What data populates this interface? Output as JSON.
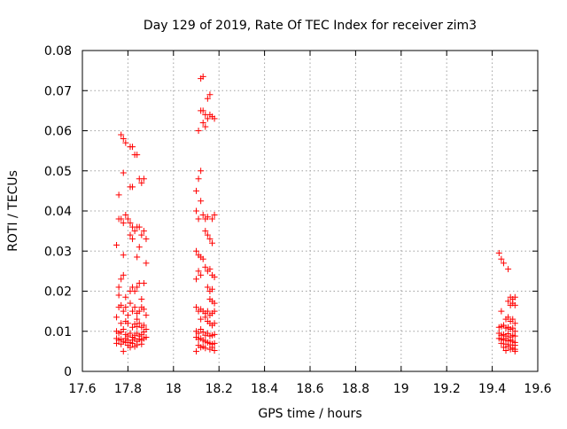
{
  "chart_data": {
    "type": "scatter",
    "title": "Day 129 of 2019, Rate Of TEC Index for receiver zim3",
    "xlabel": "GPS time / hours",
    "ylabel": "ROTI / TECUs",
    "xlim": [
      17.6,
      19.6
    ],
    "ylim": [
      0,
      0.08
    ],
    "x_ticks": [
      17.6,
      17.8,
      18.0,
      18.2,
      18.4,
      18.6,
      18.8,
      19.0,
      19.2,
      19.4,
      19.6
    ],
    "x_tick_labels": [
      "17.6",
      "17.8",
      "18",
      "18.2",
      "18.4",
      "18.6",
      "18.8",
      "19",
      "19.2",
      "19.4",
      "19.6"
    ],
    "y_ticks": [
      0,
      0.01,
      0.02,
      0.03,
      0.04,
      0.05,
      0.06,
      0.07,
      0.08
    ],
    "y_tick_labels": [
      "0",
      "0.01",
      "0.02",
      "0.03",
      "0.04",
      "0.05",
      "0.06",
      "0.07",
      "0.08"
    ],
    "grid": true,
    "marker": "+",
    "color": "#ff0000",
    "series": [
      {
        "name": "zim3",
        "points": [
          [
            17.77,
            0.059
          ],
          [
            17.78,
            0.058
          ],
          [
            17.79,
            0.057
          ],
          [
            17.81,
            0.056
          ],
          [
            17.82,
            0.056
          ],
          [
            17.83,
            0.054
          ],
          [
            17.84,
            0.054
          ],
          [
            17.78,
            0.0495
          ],
          [
            17.76,
            0.044
          ],
          [
            17.81,
            0.046
          ],
          [
            17.82,
            0.046
          ],
          [
            17.85,
            0.048
          ],
          [
            17.86,
            0.047
          ],
          [
            17.87,
            0.048
          ],
          [
            17.76,
            0.038
          ],
          [
            17.77,
            0.038
          ],
          [
            17.78,
            0.037
          ],
          [
            17.79,
            0.039
          ],
          [
            17.8,
            0.038
          ],
          [
            17.81,
            0.037
          ],
          [
            17.82,
            0.036
          ],
          [
            17.83,
            0.035
          ],
          [
            17.84,
            0.036
          ],
          [
            17.85,
            0.036
          ],
          [
            17.86,
            0.034
          ],
          [
            17.87,
            0.035
          ],
          [
            17.88,
            0.033
          ],
          [
            17.81,
            0.034
          ],
          [
            17.82,
            0.033
          ],
          [
            17.85,
            0.031
          ],
          [
            17.75,
            0.0315
          ],
          [
            17.78,
            0.029
          ],
          [
            17.84,
            0.0285
          ],
          [
            17.88,
            0.027
          ],
          [
            17.77,
            0.023
          ],
          [
            17.78,
            0.024
          ],
          [
            17.76,
            0.021
          ],
          [
            17.81,
            0.02
          ],
          [
            17.82,
            0.021
          ],
          [
            17.83,
            0.02
          ],
          [
            17.84,
            0.021
          ],
          [
            17.85,
            0.022
          ],
          [
            17.87,
            0.022
          ],
          [
            17.86,
            0.018
          ],
          [
            17.76,
            0.019
          ],
          [
            17.79,
            0.0185
          ],
          [
            17.76,
            0.016
          ],
          [
            17.77,
            0.0165
          ],
          [
            17.78,
            0.015
          ],
          [
            17.79,
            0.016
          ],
          [
            17.8,
            0.014
          ],
          [
            17.81,
            0.017
          ],
          [
            17.82,
            0.015
          ],
          [
            17.83,
            0.016
          ],
          [
            17.84,
            0.0145
          ],
          [
            17.85,
            0.015
          ],
          [
            17.86,
            0.016
          ],
          [
            17.87,
            0.0155
          ],
          [
            17.88,
            0.014
          ],
          [
            17.84,
            0.013
          ],
          [
            17.75,
            0.0135
          ],
          [
            17.77,
            0.012
          ],
          [
            17.79,
            0.0125
          ],
          [
            17.8,
            0.012
          ],
          [
            17.82,
            0.011
          ],
          [
            17.83,
            0.0118
          ],
          [
            17.84,
            0.0112
          ],
          [
            17.85,
            0.012
          ],
          [
            17.86,
            0.011
          ],
          [
            17.87,
            0.0115
          ],
          [
            17.88,
            0.0105
          ],
          [
            17.75,
            0.01
          ],
          [
            17.76,
            0.0095
          ],
          [
            17.77,
            0.0098
          ],
          [
            17.78,
            0.0105
          ],
          [
            17.79,
            0.0092
          ],
          [
            17.8,
            0.0088
          ],
          [
            17.81,
            0.0095
          ],
          [
            17.82,
            0.0085
          ],
          [
            17.83,
            0.009
          ],
          [
            17.84,
            0.0095
          ],
          [
            17.85,
            0.0088
          ],
          [
            17.86,
            0.0092
          ],
          [
            17.87,
            0.0098
          ],
          [
            17.88,
            0.0085
          ],
          [
            17.75,
            0.0082
          ],
          [
            17.76,
            0.0078
          ],
          [
            17.77,
            0.008
          ],
          [
            17.78,
            0.0075
          ],
          [
            17.79,
            0.0082
          ],
          [
            17.8,
            0.0078
          ],
          [
            17.81,
            0.0072
          ],
          [
            17.82,
            0.0078
          ],
          [
            17.83,
            0.0082
          ],
          [
            17.84,
            0.0075
          ],
          [
            17.85,
            0.008
          ],
          [
            17.86,
            0.0078
          ],
          [
            17.87,
            0.0082
          ],
          [
            17.75,
            0.007
          ],
          [
            17.77,
            0.0068
          ],
          [
            17.79,
            0.0072
          ],
          [
            17.8,
            0.0065
          ],
          [
            17.82,
            0.007
          ],
          [
            17.84,
            0.0066
          ],
          [
            17.86,
            0.0068
          ],
          [
            17.78,
            0.005
          ],
          [
            17.81,
            0.006
          ],
          [
            17.83,
            0.0062
          ],
          [
            18.12,
            0.073
          ],
          [
            18.13,
            0.0735
          ],
          [
            18.15,
            0.068
          ],
          [
            18.16,
            0.069
          ],
          [
            18.12,
            0.065
          ],
          [
            18.13,
            0.065
          ],
          [
            18.14,
            0.064
          ],
          [
            18.15,
            0.063
          ],
          [
            18.16,
            0.064
          ],
          [
            18.17,
            0.0635
          ],
          [
            18.18,
            0.063
          ],
          [
            18.13,
            0.062
          ],
          [
            18.14,
            0.061
          ],
          [
            18.11,
            0.06
          ],
          [
            18.12,
            0.05
          ],
          [
            18.11,
            0.048
          ],
          [
            18.1,
            0.045
          ],
          [
            18.12,
            0.0425
          ],
          [
            18.1,
            0.04
          ],
          [
            18.11,
            0.038
          ],
          [
            18.13,
            0.039
          ],
          [
            18.14,
            0.038
          ],
          [
            18.15,
            0.0385
          ],
          [
            18.17,
            0.038
          ],
          [
            18.18,
            0.039
          ],
          [
            18.14,
            0.035
          ],
          [
            18.15,
            0.034
          ],
          [
            18.16,
            0.033
          ],
          [
            18.17,
            0.032
          ],
          [
            18.1,
            0.03
          ],
          [
            18.11,
            0.029
          ],
          [
            18.12,
            0.0285
          ],
          [
            18.13,
            0.028
          ],
          [
            18.14,
            0.026
          ],
          [
            18.15,
            0.025
          ],
          [
            18.16,
            0.0255
          ],
          [
            18.11,
            0.025
          ],
          [
            18.12,
            0.024
          ],
          [
            18.1,
            0.023
          ],
          [
            18.17,
            0.024
          ],
          [
            18.18,
            0.0235
          ],
          [
            18.15,
            0.021
          ],
          [
            18.16,
            0.02
          ],
          [
            18.17,
            0.0205
          ],
          [
            18.16,
            0.018
          ],
          [
            18.17,
            0.0175
          ],
          [
            18.18,
            0.017
          ],
          [
            18.1,
            0.016
          ],
          [
            18.11,
            0.015
          ],
          [
            18.12,
            0.0155
          ],
          [
            18.13,
            0.015
          ],
          [
            18.14,
            0.0145
          ],
          [
            18.15,
            0.015
          ],
          [
            18.16,
            0.014
          ],
          [
            18.17,
            0.0145
          ],
          [
            18.18,
            0.015
          ],
          [
            18.12,
            0.013
          ],
          [
            18.14,
            0.0135
          ],
          [
            18.15,
            0.0125
          ],
          [
            18.16,
            0.012
          ],
          [
            18.17,
            0.0115
          ],
          [
            18.18,
            0.012
          ],
          [
            18.1,
            0.01
          ],
          [
            18.11,
            0.0095
          ],
          [
            18.12,
            0.0105
          ],
          [
            18.13,
            0.0098
          ],
          [
            18.14,
            0.009
          ],
          [
            18.15,
            0.0095
          ],
          [
            18.16,
            0.0088
          ],
          [
            18.17,
            0.009
          ],
          [
            18.18,
            0.0092
          ],
          [
            18.1,
            0.0085
          ],
          [
            18.11,
            0.008
          ],
          [
            18.12,
            0.0082
          ],
          [
            18.13,
            0.0078
          ],
          [
            18.14,
            0.0075
          ],
          [
            18.15,
            0.0072
          ],
          [
            18.16,
            0.007
          ],
          [
            18.17,
            0.0068
          ],
          [
            18.18,
            0.007
          ],
          [
            18.12,
            0.006
          ],
          [
            18.14,
            0.0058
          ],
          [
            18.16,
            0.0055
          ],
          [
            18.17,
            0.006
          ],
          [
            18.18,
            0.0052
          ],
          [
            18.11,
            0.0065
          ],
          [
            18.13,
            0.0062
          ],
          [
            18.1,
            0.005
          ],
          [
            19.43,
            0.0295
          ],
          [
            19.44,
            0.028
          ],
          [
            19.45,
            0.027
          ],
          [
            19.47,
            0.0255
          ],
          [
            19.48,
            0.0185
          ],
          [
            19.49,
            0.018
          ],
          [
            19.5,
            0.0185
          ],
          [
            19.47,
            0.0175
          ],
          [
            19.5,
            0.0165
          ],
          [
            19.48,
            0.0165
          ],
          [
            19.49,
            0.017
          ],
          [
            19.44,
            0.015
          ],
          [
            19.46,
            0.013
          ],
          [
            19.47,
            0.0135
          ],
          [
            19.48,
            0.0125
          ],
          [
            19.49,
            0.013
          ],
          [
            19.5,
            0.012
          ],
          [
            19.45,
            0.0115
          ],
          [
            19.43,
            0.011
          ],
          [
            19.44,
            0.0112
          ],
          [
            19.46,
            0.0108
          ],
          [
            19.47,
            0.011
          ],
          [
            19.48,
            0.0105
          ],
          [
            19.49,
            0.0108
          ],
          [
            19.5,
            0.01
          ],
          [
            19.43,
            0.0095
          ],
          [
            19.44,
            0.009
          ],
          [
            19.45,
            0.0092
          ],
          [
            19.46,
            0.0088
          ],
          [
            19.47,
            0.0094
          ],
          [
            19.48,
            0.0086
          ],
          [
            19.49,
            0.009
          ],
          [
            19.5,
            0.0088
          ],
          [
            19.43,
            0.0082
          ],
          [
            19.44,
            0.008
          ],
          [
            19.45,
            0.0078
          ],
          [
            19.46,
            0.0082
          ],
          [
            19.47,
            0.0076
          ],
          [
            19.48,
            0.0078
          ],
          [
            19.49,
            0.0075
          ],
          [
            19.5,
            0.0072
          ],
          [
            19.44,
            0.007
          ],
          [
            19.46,
            0.0068
          ],
          [
            19.48,
            0.0066
          ],
          [
            19.5,
            0.0065
          ],
          [
            19.45,
            0.006
          ],
          [
            19.47,
            0.0062
          ],
          [
            19.49,
            0.0058
          ],
          [
            19.5,
            0.0055
          ],
          [
            19.46,
            0.0052
          ],
          [
            19.48,
            0.0055
          ],
          [
            19.5,
            0.005
          ]
        ]
      }
    ]
  }
}
